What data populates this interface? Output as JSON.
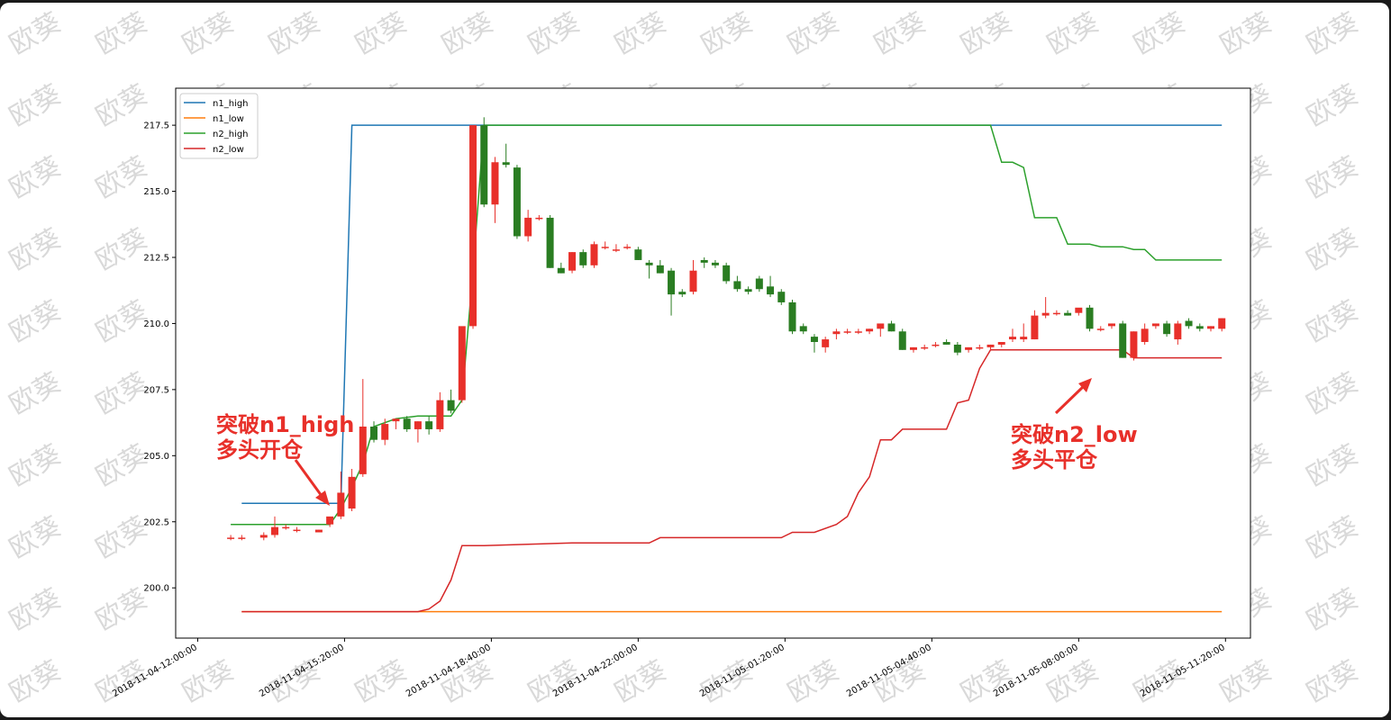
{
  "watermark": "欧葵",
  "chart_data": {
    "type": "candlestick",
    "title": "",
    "xlabel": "",
    "ylabel": "",
    "ylim": [
      198.1,
      218.9
    ],
    "y_ticks": [
      200.0,
      202.5,
      205.0,
      207.5,
      210.0,
      212.5,
      215.0,
      217.5
    ],
    "y_tick_labels": [
      "200.0",
      "202.5",
      "205.0",
      "207.5",
      "210.0",
      "212.5",
      "215.0",
      "217.5"
    ],
    "x_range_hours": [
      -0.5,
      23.9
    ],
    "x_tick_hours": [
      0,
      3.3333,
      6.6667,
      10,
      13.3333,
      16.6667,
      20,
      23.3333
    ],
    "x_tick_labels": [
      "2018-11-04-12:00:00",
      "2018-11-04-15:20:00",
      "2018-11-04-18:40:00",
      "2018-11-04-22:00:00",
      "2018-11-05-01:20:00",
      "2018-11-05-04:40:00",
      "2018-11-05-08:00:00",
      "2018-11-05-11:20:00"
    ],
    "grid": false,
    "legend_position": "top-left",
    "candles": {
      "columns": [
        "hour",
        "open",
        "high",
        "low",
        "close"
      ],
      "rows": [
        [
          0.75,
          201.9,
          202.0,
          201.8,
          201.9
        ],
        [
          1.0,
          201.9,
          202.0,
          201.8,
          201.9
        ],
        [
          1.5,
          201.9,
          202.1,
          201.8,
          202.0
        ],
        [
          1.75,
          202.0,
          202.7,
          201.9,
          202.3
        ],
        [
          2.0,
          202.3,
          202.4,
          202.2,
          202.3
        ],
        [
          2.25,
          202.2,
          202.3,
          202.1,
          202.2
        ],
        [
          2.75,
          202.1,
          202.2,
          202.1,
          202.2
        ],
        [
          3.0,
          202.4,
          202.6,
          202.3,
          202.7
        ],
        [
          3.25,
          202.7,
          204.4,
          202.6,
          203.6
        ],
        [
          3.5,
          203.0,
          204.5,
          202.9,
          204.2
        ],
        [
          3.75,
          204.3,
          207.9,
          204.2,
          206.1
        ],
        [
          4.0,
          206.1,
          206.3,
          205.5,
          205.6
        ],
        [
          4.25,
          205.6,
          206.4,
          205.4,
          206.2
        ],
        [
          4.5,
          206.3,
          206.4,
          206.0,
          206.4
        ],
        [
          4.75,
          206.4,
          206.5,
          205.9,
          206.0
        ],
        [
          5.0,
          206.0,
          206.3,
          205.5,
          206.3
        ],
        [
          5.25,
          206.3,
          206.5,
          205.8,
          206.0
        ],
        [
          5.5,
          206.0,
          207.4,
          205.9,
          207.1
        ],
        [
          5.75,
          207.1,
          207.5,
          206.6,
          206.7
        ],
        [
          6.0,
          207.1,
          208.6,
          207.0,
          209.9
        ],
        [
          6.25,
          209.9,
          217.5,
          209.8,
          217.5
        ],
        [
          6.5,
          217.5,
          217.8,
          214.4,
          214.5
        ],
        [
          6.75,
          214.5,
          216.3,
          213.8,
          216.1
        ],
        [
          7.0,
          216.1,
          216.8,
          215.9,
          216.0
        ],
        [
          7.25,
          215.9,
          216.0,
          213.2,
          213.3
        ],
        [
          7.5,
          213.3,
          214.3,
          213.1,
          214.0
        ],
        [
          7.75,
          214.0,
          214.1,
          213.9,
          214.0
        ],
        [
          8.0,
          214.0,
          214.1,
          212.1,
          212.1
        ],
        [
          8.25,
          212.1,
          212.3,
          211.9,
          211.9
        ],
        [
          8.5,
          212.0,
          212.7,
          211.9,
          212.7
        ],
        [
          8.75,
          212.7,
          212.8,
          212.1,
          212.2
        ],
        [
          9.0,
          212.2,
          213.1,
          212.1,
          213.0
        ],
        [
          9.25,
          212.9,
          213.1,
          212.8,
          212.9
        ],
        [
          9.5,
          212.8,
          213.0,
          212.7,
          212.8
        ],
        [
          9.75,
          212.9,
          213.0,
          212.8,
          212.9
        ],
        [
          10.0,
          212.8,
          212.9,
          212.4,
          212.4
        ],
        [
          10.25,
          212.3,
          212.4,
          211.7,
          212.2
        ],
        [
          10.5,
          212.2,
          212.4,
          211.9,
          211.9
        ],
        [
          10.75,
          212.0,
          212.1,
          210.3,
          211.1
        ],
        [
          11.0,
          211.2,
          211.3,
          211.0,
          211.1
        ],
        [
          11.25,
          211.2,
          212.4,
          211.1,
          212.0
        ],
        [
          11.5,
          212.4,
          212.5,
          212.1,
          212.3
        ],
        [
          11.75,
          212.3,
          212.4,
          212.1,
          212.2
        ],
        [
          12.0,
          212.2,
          212.3,
          211.5,
          211.6
        ],
        [
          12.25,
          211.6,
          211.8,
          211.2,
          211.3
        ],
        [
          12.5,
          211.3,
          211.4,
          211.1,
          211.2
        ],
        [
          12.75,
          211.7,
          211.8,
          211.2,
          211.3
        ],
        [
          13.0,
          211.4,
          211.8,
          211.0,
          211.1
        ],
        [
          13.25,
          211.2,
          211.3,
          210.7,
          210.8
        ],
        [
          13.5,
          210.8,
          210.9,
          209.6,
          209.7
        ],
        [
          13.75,
          209.9,
          210.0,
          209.6,
          209.7
        ],
        [
          14.0,
          209.5,
          209.6,
          208.9,
          209.3
        ],
        [
          14.25,
          209.1,
          209.5,
          208.9,
          209.4
        ],
        [
          14.5,
          209.6,
          209.8,
          209.4,
          209.7
        ],
        [
          14.75,
          209.7,
          209.8,
          209.6,
          209.7
        ],
        [
          15.0,
          209.7,
          209.8,
          209.6,
          209.7
        ],
        [
          15.25,
          209.7,
          209.8,
          209.6,
          209.8
        ],
        [
          15.5,
          209.8,
          209.9,
          209.5,
          210.0
        ],
        [
          15.75,
          210.0,
          210.1,
          209.7,
          209.7
        ],
        [
          16.0,
          209.7,
          209.8,
          209.0,
          209.0
        ],
        [
          16.25,
          209.0,
          209.1,
          208.9,
          209.1
        ],
        [
          16.5,
          209.1,
          209.2,
          209.0,
          209.1
        ],
        [
          16.75,
          209.2,
          209.3,
          209.1,
          209.2
        ],
        [
          17.0,
          209.3,
          209.4,
          209.2,
          209.2
        ],
        [
          17.25,
          209.2,
          209.3,
          208.8,
          208.9
        ],
        [
          17.5,
          209.0,
          209.1,
          208.9,
          209.1
        ],
        [
          17.75,
          209.1,
          209.2,
          209.0,
          209.1
        ],
        [
          18.0,
          209.1,
          209.2,
          209.0,
          209.2
        ],
        [
          18.25,
          209.2,
          209.3,
          209.1,
          209.3
        ],
        [
          18.5,
          209.4,
          209.8,
          209.3,
          209.5
        ],
        [
          18.75,
          209.4,
          210.0,
          209.3,
          209.5
        ],
        [
          19.0,
          209.4,
          210.5,
          209.4,
          210.3
        ],
        [
          19.25,
          210.3,
          211.0,
          210.2,
          210.4
        ],
        [
          19.5,
          210.4,
          210.5,
          210.3,
          210.4
        ],
        [
          19.75,
          210.4,
          210.5,
          210.3,
          210.3
        ],
        [
          20.0,
          210.4,
          210.5,
          210.3,
          210.6
        ],
        [
          20.25,
          210.6,
          210.7,
          209.7,
          209.8
        ],
        [
          20.5,
          209.8,
          209.9,
          209.7,
          209.8
        ],
        [
          20.75,
          209.9,
          210.0,
          209.8,
          210.0
        ],
        [
          21.0,
          210.0,
          210.1,
          208.7,
          208.7
        ],
        [
          21.25,
          208.7,
          209.7,
          208.6,
          209.7
        ],
        [
          21.5,
          209.3,
          210.0,
          209.2,
          209.8
        ],
        [
          21.75,
          209.9,
          210.0,
          209.8,
          210.0
        ],
        [
          22.0,
          210.0,
          210.1,
          209.5,
          209.6
        ],
        [
          22.25,
          209.4,
          210.1,
          209.2,
          210.0
        ],
        [
          22.5,
          210.1,
          210.2,
          209.8,
          209.9
        ],
        [
          22.75,
          209.9,
          210.0,
          209.7,
          209.8
        ],
        [
          23.0,
          209.8,
          209.9,
          209.7,
          209.9
        ],
        [
          23.25,
          209.8,
          210.2,
          209.7,
          210.2
        ]
      ]
    },
    "series": [
      {
        "name": "n1_high",
        "color": "#1f77b4",
        "points": [
          [
            1.0,
            203.2
          ],
          [
            3.25,
            203.2
          ],
          [
            3.25,
            203.2
          ],
          [
            3.5,
            217.5
          ],
          [
            23.25,
            217.5
          ]
        ]
      },
      {
        "name": "n1_low",
        "color": "#ff7f0e",
        "points": [
          [
            1.0,
            199.1
          ],
          [
            23.25,
            199.1
          ]
        ]
      },
      {
        "name": "n2_high",
        "color": "#2ca02c",
        "points": [
          [
            0.75,
            202.4
          ],
          [
            1.5,
            202.4
          ],
          [
            3.0,
            202.4
          ],
          [
            3.25,
            203.0
          ],
          [
            3.5,
            203.8
          ],
          [
            3.75,
            204.7
          ],
          [
            4.0,
            206.1
          ],
          [
            4.5,
            206.4
          ],
          [
            5.0,
            206.5
          ],
          [
            5.75,
            206.5
          ],
          [
            6.0,
            207.1
          ],
          [
            6.25,
            212.0
          ],
          [
            6.5,
            217.5
          ],
          [
            18.0,
            217.5
          ],
          [
            18.25,
            216.1
          ],
          [
            18.5,
            216.1
          ],
          [
            18.75,
            215.9
          ],
          [
            19.0,
            214.0
          ],
          [
            19.5,
            214.0
          ],
          [
            19.75,
            213.0
          ],
          [
            20.25,
            213.0
          ],
          [
            20.5,
            212.9
          ],
          [
            21.0,
            212.9
          ],
          [
            21.25,
            212.8
          ],
          [
            21.5,
            212.8
          ],
          [
            21.75,
            212.4
          ],
          [
            22.0,
            212.4
          ],
          [
            23.25,
            212.4
          ]
        ]
      },
      {
        "name": "n2_low",
        "color": "#d62728",
        "points": [
          [
            1.0,
            199.1
          ],
          [
            5.0,
            199.1
          ],
          [
            5.25,
            199.2
          ],
          [
            5.5,
            199.5
          ],
          [
            5.75,
            200.3
          ],
          [
            6.0,
            201.6
          ],
          [
            6.5,
            201.6
          ],
          [
            8.5,
            201.7
          ],
          [
            10.25,
            201.7
          ],
          [
            10.5,
            201.9
          ],
          [
            13.25,
            201.9
          ],
          [
            13.5,
            202.1
          ],
          [
            14.0,
            202.1
          ],
          [
            14.5,
            202.4
          ],
          [
            14.75,
            202.7
          ],
          [
            15.0,
            203.6
          ],
          [
            15.25,
            204.2
          ],
          [
            15.5,
            205.6
          ],
          [
            15.75,
            205.6
          ],
          [
            16.0,
            206.0
          ],
          [
            17.0,
            206.0
          ],
          [
            17.25,
            207.0
          ],
          [
            17.5,
            207.1
          ],
          [
            17.75,
            208.3
          ],
          [
            18.0,
            209.0
          ],
          [
            21.0,
            209.0
          ],
          [
            21.25,
            208.7
          ],
          [
            23.25,
            208.7
          ]
        ]
      }
    ],
    "annotations": [
      {
        "lines": [
          "突破n1_high",
          "多头开仓"
        ],
        "arrow_to": [
          3.25,
          203.6
        ]
      },
      {
        "lines": [
          "突破n2_low",
          "多头平仓"
        ],
        "arrow_to": [
          21.1,
          208.9
        ]
      }
    ]
  }
}
